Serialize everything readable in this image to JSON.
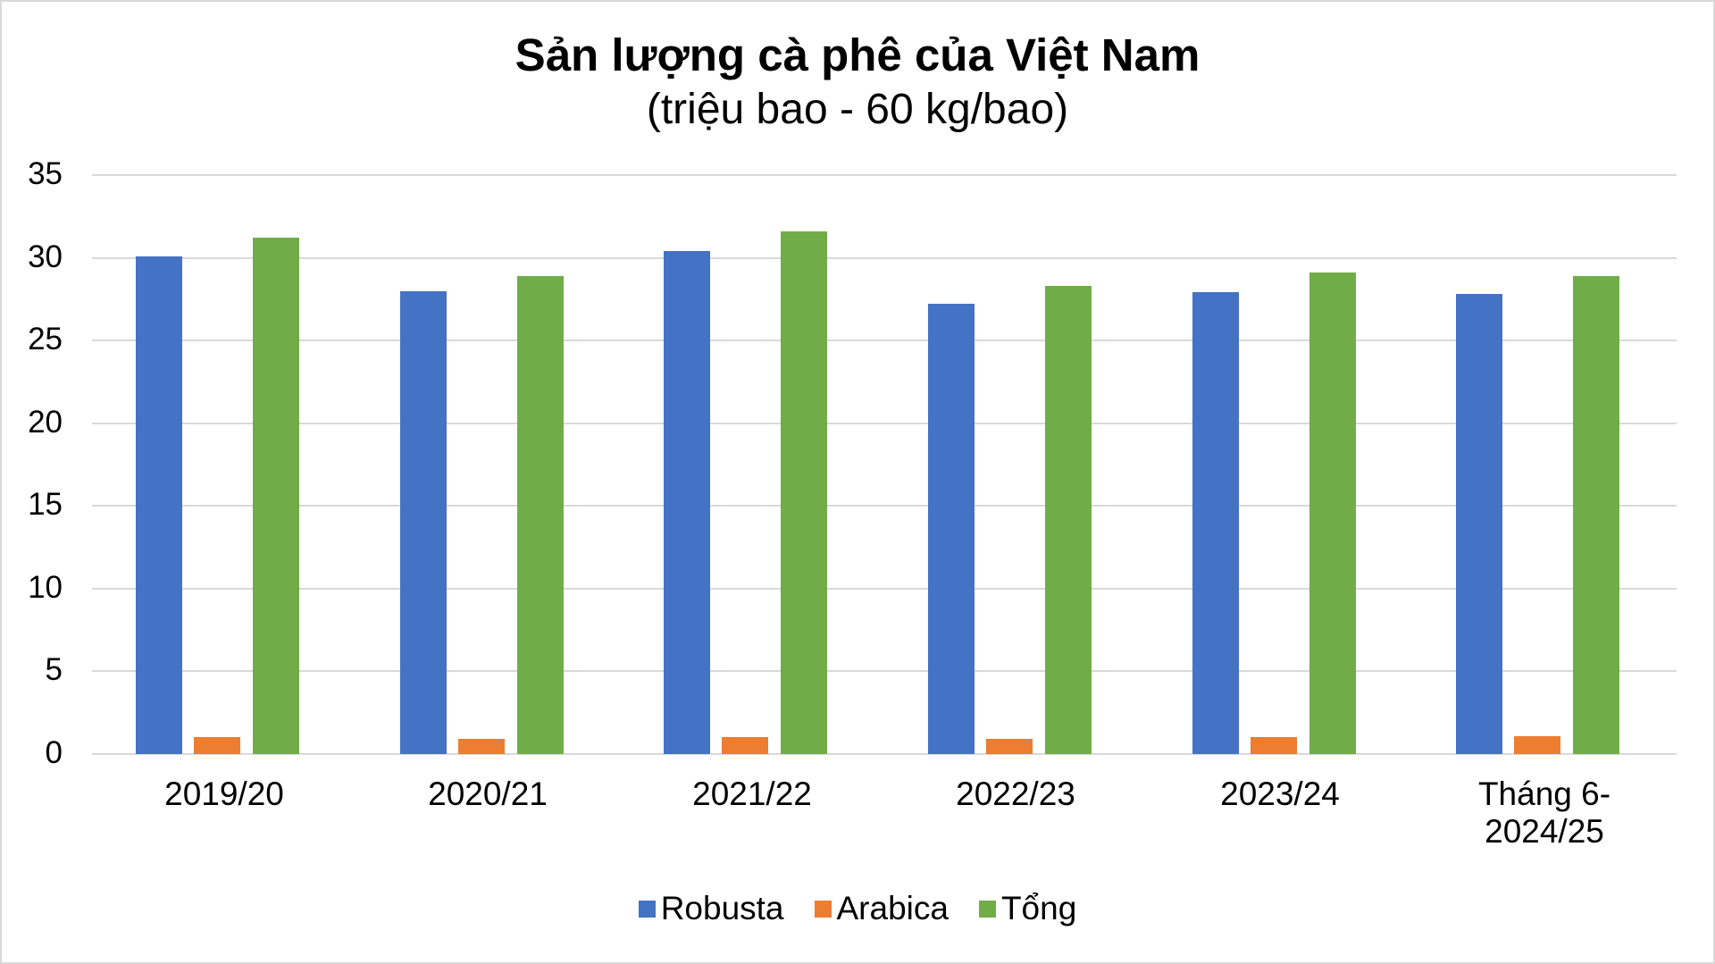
{
  "chart_data": {
    "type": "bar",
    "title": "Sản lượng cà phê của Việt Nam",
    "subtitle": "(triệu bao - 60 kg/bao)",
    "xlabel": "",
    "ylabel": "",
    "ylim": [
      0,
      35
    ],
    "yticks": [
      0,
      5,
      10,
      15,
      20,
      25,
      30,
      35
    ],
    "grid": true,
    "legend_position": "bottom",
    "categories": [
      "2019/20",
      "2020/21",
      "2021/22",
      "2022/23",
      "2023/24",
      "Tháng 6-2024/25"
    ],
    "series": [
      {
        "name": "Robusta",
        "color": "#4472c4",
        "values": [
          30.1,
          28.0,
          30.4,
          27.2,
          27.9,
          27.8
        ]
      },
      {
        "name": "Arabica",
        "color": "#ed7d31",
        "values": [
          1.0,
          0.9,
          1.0,
          0.9,
          1.0,
          1.1
        ]
      },
      {
        "name": "Tổng",
        "color": "#70ad47",
        "values": [
          31.2,
          28.9,
          31.6,
          28.3,
          29.1,
          28.9
        ]
      }
    ]
  },
  "labels": {
    "cat0": "2019/20",
    "cat1": "2020/21",
    "cat2": "2021/22",
    "cat3": "2022/23",
    "cat4": "2023/24",
    "cat5a": "Tháng 6-",
    "cat5b": "2024/25"
  }
}
